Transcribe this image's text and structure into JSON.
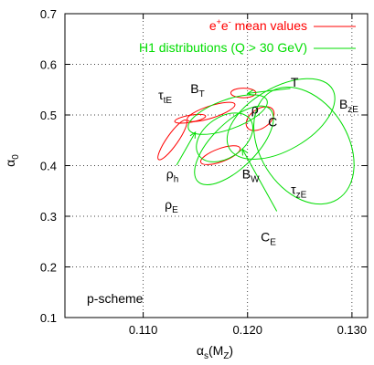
{
  "chart_data": {
    "type": "scatter",
    "xlabel": {
      "base": "α",
      "sub1": "s",
      "mid": "(M",
      "sub2": "Z",
      "end": ")"
    },
    "ylabel": {
      "base": "α",
      "sub": "0"
    },
    "xlim": [
      0.1025,
      0.1315
    ],
    "ylim": [
      0.1,
      0.7
    ],
    "xticks": [
      "0.110",
      "0.120",
      "0.130"
    ],
    "xtick_values": [
      0.11,
      0.12,
      0.13
    ],
    "yticks": [
      "0.1",
      "0.2",
      "0.3",
      "0.4",
      "0.5",
      "0.6",
      "0.7"
    ],
    "ytick_values": [
      0.1,
      0.2,
      0.3,
      0.4,
      0.5,
      0.6,
      0.7
    ],
    "grid": true,
    "legend_position": "top-right",
    "legend": [
      {
        "key": "red",
        "prefix": "e",
        "sup1": "+",
        "mid": "e",
        "sup2": "-",
        "suffix": " mean values",
        "color": "#ff0000"
      },
      {
        "key": "green",
        "text": "H1 distributions (Q > 30 GeV)",
        "color": "#00dd00"
      }
    ],
    "annotation": "p-scheme",
    "series": [
      {
        "color": "#ff0000",
        "ellipses": [
          {
            "cx": 0.1196,
            "cy": 0.5435,
            "rx": 0.0012,
            "ry": 0.0095,
            "angle": 0
          },
          {
            "cx": 0.1165,
            "cy": 0.506,
            "rx": 0.0024,
            "ry": 0.012,
            "angle": -18
          },
          {
            "cx": 0.1212,
            "cy": 0.4928,
            "rx": 0.0015,
            "ry": 0.019,
            "angle": -35
          },
          {
            "cx": 0.1145,
            "cy": 0.4925,
            "rx": 0.0015,
            "ry": 0.007,
            "angle": -10
          },
          {
            "cx": 0.1128,
            "cy": 0.4508,
            "rx": 0.0023,
            "ry": 0.011,
            "angle": -55
          },
          {
            "cx": 0.1174,
            "cy": 0.4206,
            "rx": 0.002,
            "ry": 0.013,
            "angle": -20
          }
        ]
      },
      {
        "color": "#00dd00",
        "ellipses": [
          {
            "cx": 0.1232,
            "cy": 0.4922,
            "rx": 0.0057,
            "ry": 0.062,
            "angle": -30
          },
          {
            "cx": 0.1254,
            "cy": 0.4395,
            "rx": 0.0042,
            "ry": 0.125,
            "angle": -32
          },
          {
            "cx": 0.1181,
            "cy": 0.5008,
            "rx": 0.004,
            "ry": 0.029,
            "angle": -20
          },
          {
            "cx": 0.1178,
            "cy": 0.4557,
            "rx": 0.003,
            "ry": 0.04,
            "angle": -35
          },
          {
            "cx": 0.1187,
            "cy": 0.44,
            "rx": 0.0049,
            "ry": 0.044,
            "angle": -45
          }
        ]
      }
    ],
    "labels": [
      {
        "key": "T",
        "base": "T",
        "sub": "",
        "x": 0.1245,
        "y": 0.556
      },
      {
        "key": "BzE",
        "base": "B",
        "sub": "zE",
        "x": 0.1297,
        "y": 0.5125
      },
      {
        "key": "rho",
        "base": "ρ",
        "sub": "",
        "x": 0.1207,
        "y": 0.5025
      },
      {
        "key": "C",
        "base": "C",
        "sub": "",
        "x": 0.1224,
        "y": 0.4775
      },
      {
        "key": "tautE",
        "base": "τ",
        "sub": "tE",
        "x": 0.1121,
        "y": 0.531
      },
      {
        "key": "BT",
        "base": "B",
        "sub": "T",
        "x": 0.1152,
        "y": 0.5435
      },
      {
        "key": "rhoh",
        "base": "ρ",
        "sub": "h",
        "x": 0.1128,
        "y": 0.375
      },
      {
        "key": "rhoE",
        "base": "ρ",
        "sub": "E",
        "x": 0.1127,
        "y": 0.3145
      },
      {
        "key": "BW",
        "base": "B",
        "sub": "W",
        "x": 0.1203,
        "y": 0.3745
      },
      {
        "key": "tauzE",
        "base": "τ",
        "sub": "zE",
        "x": 0.1249,
        "y": 0.3445
      },
      {
        "key": "CE",
        "base": "C",
        "sub": "E",
        "x": 0.122,
        "y": 0.2505
      }
    ],
    "arrows": [
      {
        "x1": 0.1241,
        "y1": 0.5525,
        "x2": 0.12,
        "y2": 0.5425
      },
      {
        "x1": 0.1132,
        "y1": 0.401,
        "x2": 0.115,
        "y2": 0.466
      },
      {
        "x1": 0.1228,
        "y1": 0.31,
        "x2": 0.1195,
        "y2": 0.4325
      }
    ]
  }
}
